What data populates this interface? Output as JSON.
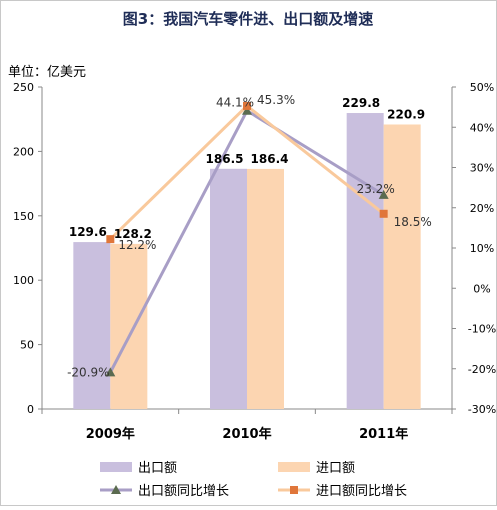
{
  "chart_data": {
    "type": "bar",
    "title": "图3：我国汽车零件进、出口额及增速",
    "unit_label": "单位：亿美元",
    "categories": [
      "2009年",
      "2010年",
      "2011年"
    ],
    "y_left": {
      "min": 0,
      "max": 250,
      "ticks": [
        "0",
        "50",
        "100",
        "150",
        "200",
        "250"
      ]
    },
    "y_right": {
      "min": -30,
      "max": 50,
      "ticks": [
        "-30%",
        "-20%",
        "-10%",
        "0%",
        "10%",
        "20%",
        "30%",
        "40%",
        "50%"
      ]
    },
    "series": [
      {
        "name": "出口额",
        "kind": "bar",
        "axis": "left",
        "color": "#c9bfde",
        "values": [
          129.6,
          186.5,
          229.8
        ],
        "labels": [
          "129.6",
          "186.5",
          "229.8"
        ]
      },
      {
        "name": "进口额",
        "kind": "bar",
        "axis": "left",
        "color": "#fcd5b1",
        "values": [
          128.2,
          186.4,
          220.9
        ],
        "labels": [
          "128.2",
          "186.4",
          "220.9"
        ]
      },
      {
        "name": "出口额同比增长",
        "kind": "line",
        "axis": "right",
        "color": "#a89ec6",
        "marker": "triangle",
        "marker_color": "#5b6b50",
        "values": [
          -20.9,
          44.1,
          23.2
        ],
        "labels": [
          "-20.9%",
          "44.1%",
          "23.2%"
        ]
      },
      {
        "name": "进口额同比增长",
        "kind": "line",
        "axis": "right",
        "color": "#f9c99c",
        "marker": "square",
        "marker_color": "#e0763a",
        "values": [
          12.2,
          45.3,
          18.5
        ],
        "labels": [
          "12.2%",
          "45.3%",
          "18.5%"
        ]
      }
    ],
    "grid": false,
    "legend_position": "bottom"
  }
}
